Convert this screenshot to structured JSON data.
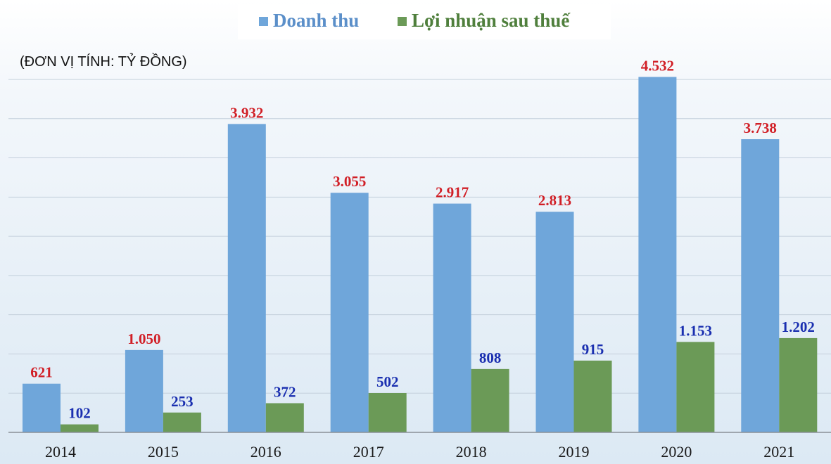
{
  "chart_data": {
    "type": "bar",
    "unit_note": "(ĐƠN VỊ TÍNH: TỶ ĐỒNG)",
    "categories": [
      "2014",
      "2015",
      "2016",
      "2017",
      "2018",
      "2019",
      "2020",
      "2021"
    ],
    "series": [
      {
        "name": "Doanh thu",
        "color": "#6fa6da",
        "label_color": "#d11f26",
        "values": [
          621,
          1050,
          3932,
          3055,
          2917,
          2813,
          4532,
          3738
        ],
        "labels": [
          "621",
          "1.050",
          "3.932",
          "3.055",
          "2.917",
          "2.813",
          "4.532",
          "3.738"
        ]
      },
      {
        "name": "Lợi nhuận sau thuế",
        "color": "#6b9a57",
        "label_color": "#1a2fb0",
        "values": [
          102,
          253,
          372,
          502,
          808,
          915,
          1153,
          1202
        ],
        "labels": [
          "102",
          "253",
          "372",
          "502",
          "808",
          "915",
          "1.153",
          "1.202"
        ]
      }
    ],
    "ylim": [
      0,
      4500
    ],
    "grid": true,
    "legend": "top-center"
  }
}
